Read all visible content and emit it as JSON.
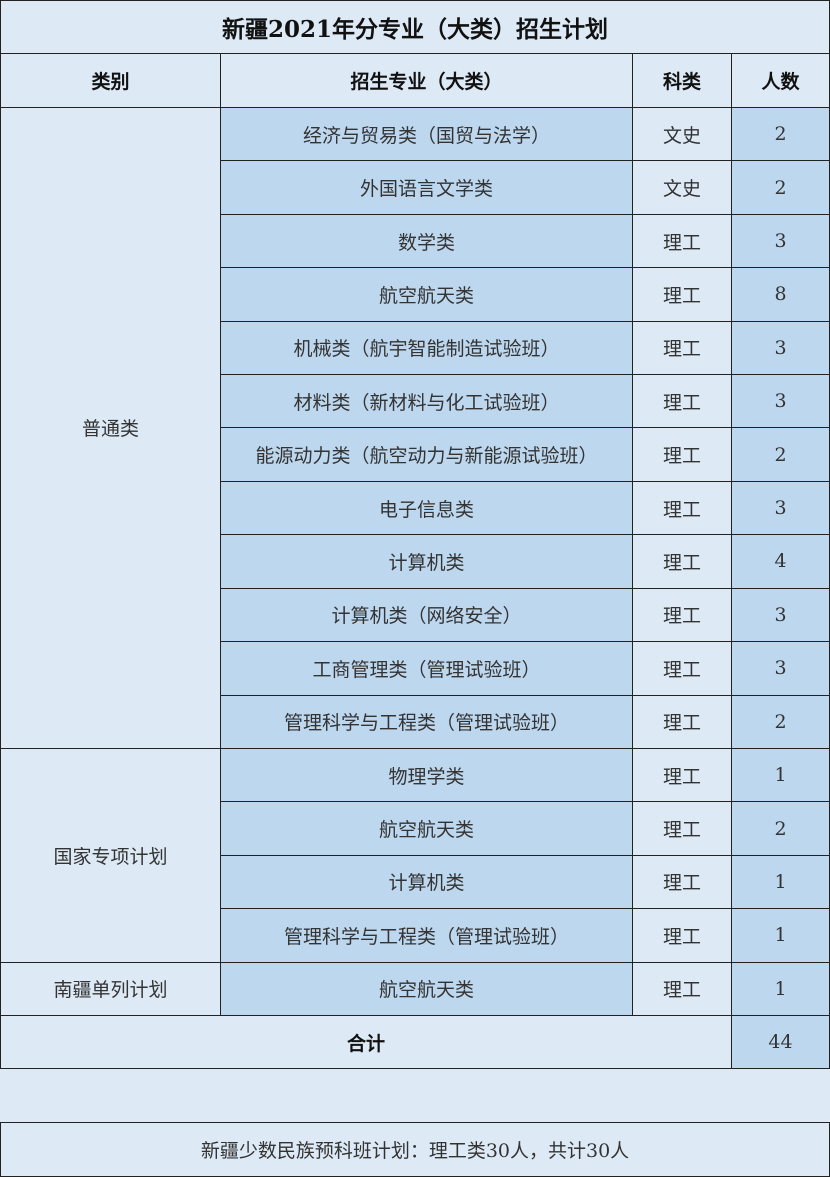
{
  "title": "新疆2021年分专业（大类）招生计划",
  "headers": [
    "类别",
    "招生专业（大类）",
    "科类",
    "人数"
  ],
  "groups": [
    {
      "category": "普通类",
      "rows": [
        {
          "major": "经济与贸易类（国贸与法学）",
          "subject": "文史",
          "count": "2"
        },
        {
          "major": "外国语言文学类",
          "subject": "文史",
          "count": "2"
        },
        {
          "major": "数学类",
          "subject": "理工",
          "count": "3"
        },
        {
          "major": "航空航天类",
          "subject": "理工",
          "count": "8"
        },
        {
          "major": "机械类（航宇智能制造试验班）",
          "subject": "理工",
          "count": "3"
        },
        {
          "major": "材料类（新材料与化工试验班）",
          "subject": "理工",
          "count": "3"
        },
        {
          "major": "能源动力类（航空动力与新能源试验班）",
          "subject": "理工",
          "count": "2"
        },
        {
          "major": "电子信息类",
          "subject": "理工",
          "count": "3"
        },
        {
          "major": "计算机类",
          "subject": "理工",
          "count": "4"
        },
        {
          "major": "计算机类（网络安全）",
          "subject": "理工",
          "count": "3"
        },
        {
          "major": "工商管理类（管理试验班）",
          "subject": "理工",
          "count": "3"
        },
        {
          "major": "管理科学与工程类（管理试验班）",
          "subject": "理工",
          "count": "2"
        }
      ]
    },
    {
      "category": "国家专项计划",
      "rows": [
        {
          "major": "物理学类",
          "subject": "理工",
          "count": "1"
        },
        {
          "major": "航空航天类",
          "subject": "理工",
          "count": "2"
        },
        {
          "major": "计算机类",
          "subject": "理工",
          "count": "1"
        },
        {
          "major": "管理科学与工程类（管理试验班）",
          "subject": "理工",
          "count": "1"
        }
      ]
    },
    {
      "category": "南疆单列计划",
      "rows": [
        {
          "major": "航空航天类",
          "subject": "理工",
          "count": "1"
        }
      ]
    }
  ],
  "total": {
    "label": "合计",
    "value": "44"
  },
  "footer_note": "新疆少数民族预科班计划：理工类30人，共计30人",
  "colors": {
    "light": "#ddeaf6",
    "dark": "#bdd7ee",
    "border": "#222222"
  }
}
